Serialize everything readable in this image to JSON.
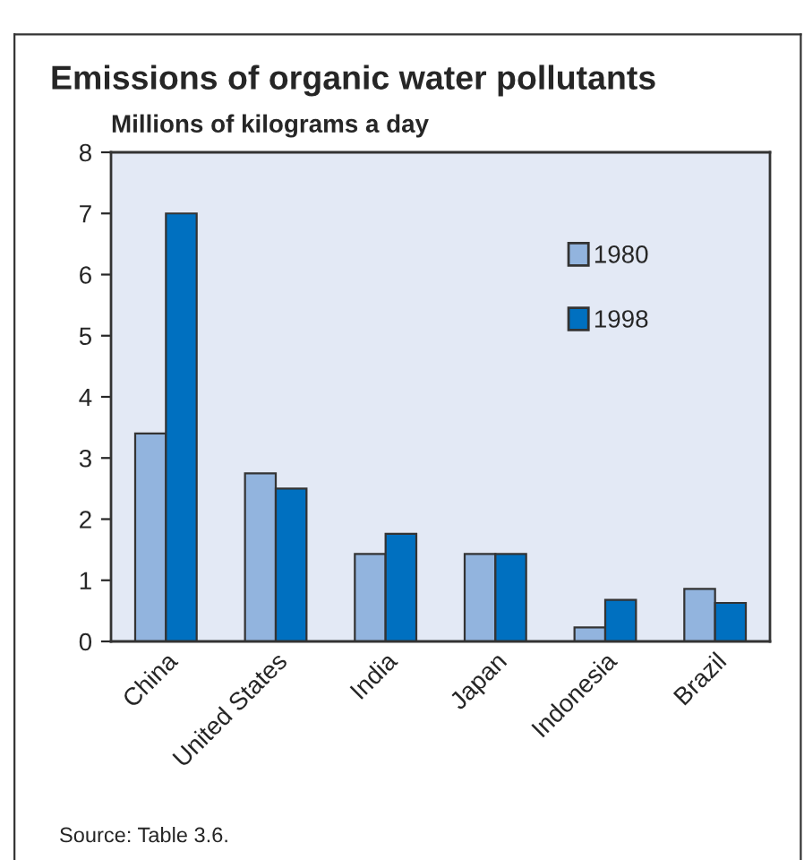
{
  "chart_data": {
    "type": "bar",
    "title": "Emissions of organic water pollutants",
    "ylabel": "Millions of kilograms a day",
    "categories": [
      "China",
      "United States",
      "India",
      "Japan",
      "Indonesia",
      "Brazil"
    ],
    "series": [
      {
        "name": "1980",
        "color": "#92b4de",
        "values": [
          3.4,
          2.75,
          1.43,
          1.43,
          0.23,
          0.86
        ]
      },
      {
        "name": "1998",
        "color": "#0070c0",
        "values": [
          7.0,
          2.5,
          1.76,
          1.43,
          0.68,
          0.63
        ]
      }
    ],
    "ylim": [
      0,
      8
    ],
    "yticks": [
      0,
      1,
      2,
      3,
      4,
      5,
      6,
      7,
      8
    ],
    "grid": false,
    "legend": "top right",
    "annotations": [
      "Source: Table 3.6."
    ]
  }
}
